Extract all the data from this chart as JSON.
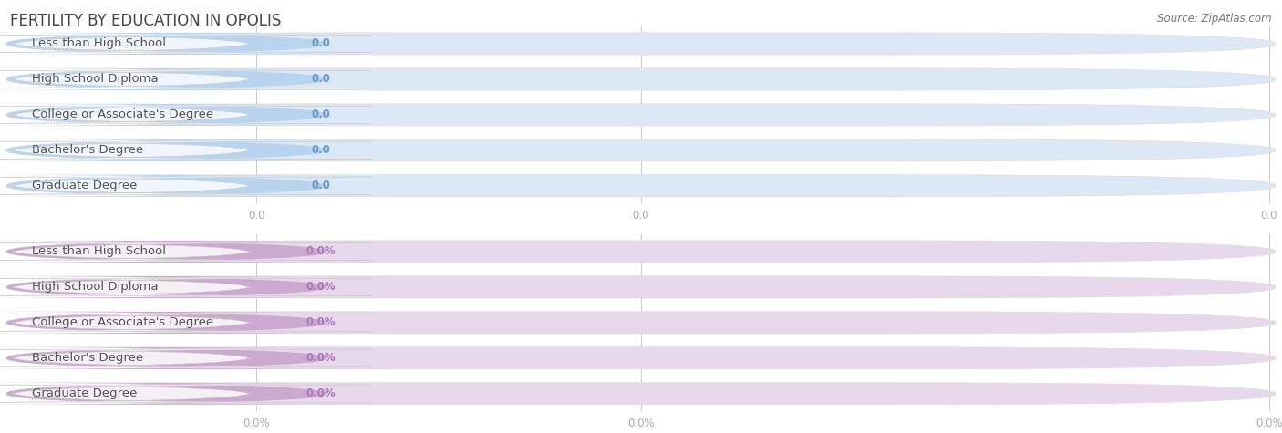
{
  "title": "FERTILITY BY EDUCATION IN OPOLIS",
  "source": "Source: ZipAtlas.com",
  "categories": [
    "Less than High School",
    "High School Diploma",
    "College or Associate's Degree",
    "Bachelor's Degree",
    "Graduate Degree"
  ],
  "top_values": [
    0.0,
    0.0,
    0.0,
    0.0,
    0.0
  ],
  "bottom_values": [
    0.0,
    0.0,
    0.0,
    0.0,
    0.0
  ],
  "top_bar_color": "#b8d4ee",
  "top_bar_bg": "#dce8f5",
  "top_white_pill_color": "#f0f6fc",
  "bottom_bar_color": "#ccaad0",
  "bottom_bar_bg": "#e8d8ec",
  "bottom_white_pill_color": "#f5f0f5",
  "label_text_color": "#555555",
  "value_text_color": "#6699cc",
  "bottom_value_text_color": "#aa77bb",
  "tick_text_color": "#aaaaaa",
  "top_tick_labels": [
    "0.0",
    "0.0",
    "0.0"
  ],
  "bottom_tick_labels": [
    "0.0%",
    "0.0%",
    "0.0%"
  ],
  "bg_color": "#ffffff",
  "bar_height": 0.62,
  "title_fontsize": 12,
  "label_fontsize": 9.5,
  "value_fontsize": 8.5,
  "source_fontsize": 8.5,
  "tick_fontsize": 8.5
}
